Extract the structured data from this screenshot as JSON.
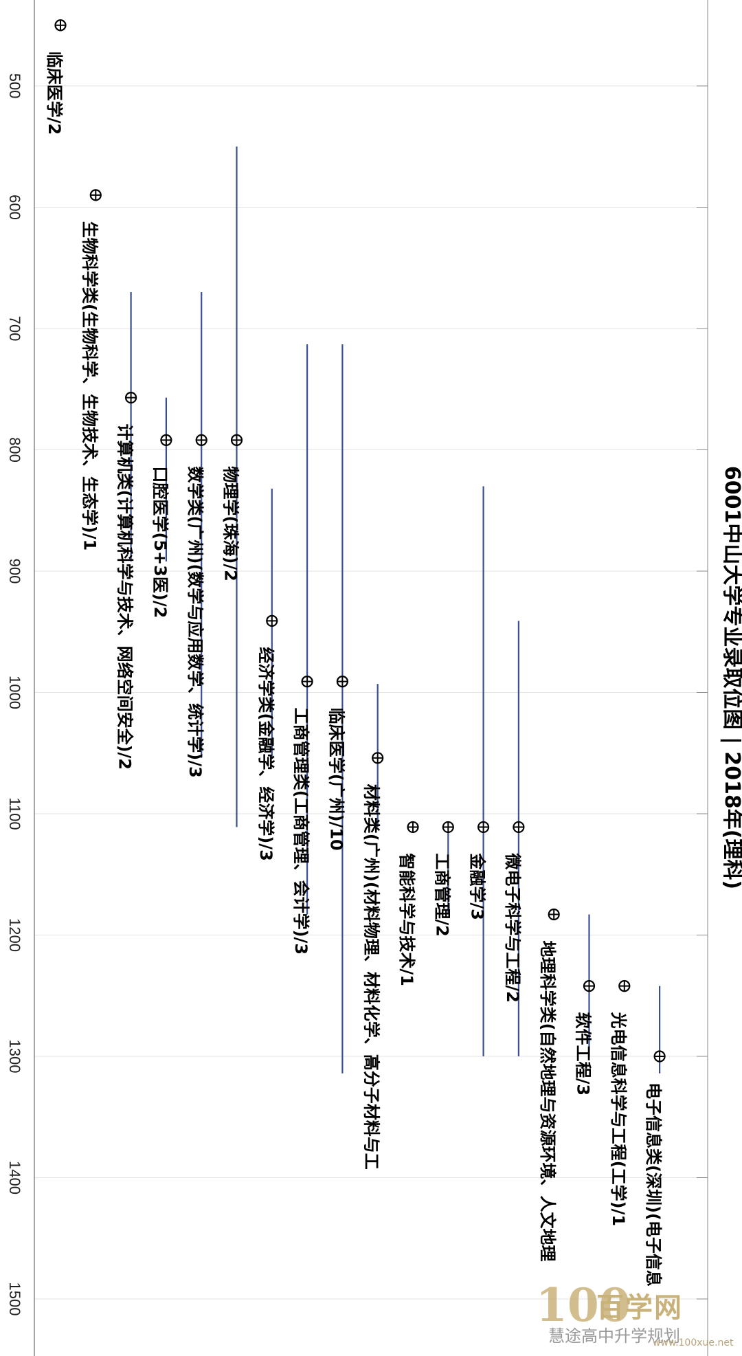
{
  "chart_data": {
    "type": "scatter",
    "orientation": "rotated-90-clockwise",
    "title": "6001中山大学专业录取位图 | 2018年(理科)",
    "value_axis": {
      "ticks": [
        500,
        600,
        700,
        800,
        900,
        1000,
        1100,
        1200,
        1300,
        1400,
        1500
      ],
      "range": [
        430,
        1550
      ],
      "grid": true
    },
    "points": [
      {
        "label": "临床医学/2",
        "value": 450
      },
      {
        "label": "生物科学类(生物科学、生物技术、生态学)/1",
        "value": 590
      },
      {
        "label": "计算机类(计算机科学与技术、网络空间安全)/2",
        "value": 757,
        "min": 670,
        "max": 892
      },
      {
        "label": "口腔医学(5+3医)/2",
        "value": 792,
        "min": 757,
        "max": 892
      },
      {
        "label": "数学类(广州)(数学与应用数学、统计学)/3",
        "value": 792,
        "min": 670,
        "max": 1054
      },
      {
        "label": "物理学(珠海)/2",
        "value": 792,
        "min": 550,
        "max": 1111
      },
      {
        "label": "经济学类(金融学、经济学)/3",
        "value": 941,
        "min": 832,
        "max": 1054
      },
      {
        "label": "工商管理类(工商管理、会计学)/3",
        "value": 991,
        "min": 713,
        "max": 1183
      },
      {
        "label": "临床医学(广州)/10",
        "value": 991,
        "min": 713,
        "max": 1314
      },
      {
        "label": "材料类(广州)(材料物理、材料化学、高分子材料与工",
        "value": 1054,
        "min": 993,
        "max": 1111
      },
      {
        "label": "智能科学与技术/1",
        "value": 1111
      },
      {
        "label": "工商管理/2",
        "value": 1111,
        "min": 1111,
        "max": 1183
      },
      {
        "label": "金融学/3",
        "value": 1111,
        "min": 830,
        "max": 1300
      },
      {
        "label": "微电子科学与工程/2",
        "value": 1111,
        "min": 941,
        "max": 1300
      },
      {
        "label": "地理科学类(自然地理与资源环境、人文地理",
        "value": 1183
      },
      {
        "label": "软件工程/3",
        "value": 1242,
        "min": 1183,
        "max": 1300
      },
      {
        "label": "光电信息科学与工程(工学)/1",
        "value": 1242
      },
      {
        "label": "电子信息类(深圳)(电子信息",
        "value": 1300,
        "min": 1242,
        "max": 1314
      }
    ],
    "colors": {
      "range_line": "#3b4f93",
      "marker": "#000000",
      "grid": "#e3e3e3",
      "axis": "#888888"
    }
  },
  "watermark": {
    "number": "100",
    "big": "百学网",
    "line": "慧途高中升学规划",
    "url": "www.100xue.net"
  }
}
